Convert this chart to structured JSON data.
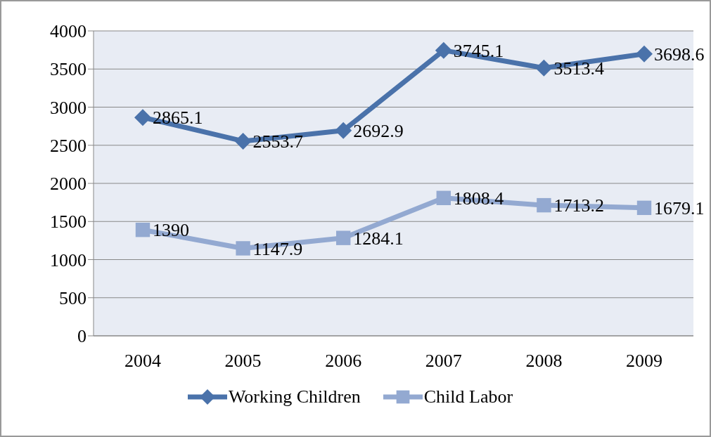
{
  "chart_data": {
    "type": "line",
    "categories": [
      "2004",
      "2005",
      "2006",
      "2007",
      "2008",
      "2009"
    ],
    "series": [
      {
        "name": "Working Children",
        "color": "#4a72aa",
        "marker": "diamond",
        "values": [
          2865.1,
          2553.7,
          2692.9,
          3745.1,
          3513.4,
          3698.6
        ]
      },
      {
        "name": "Child Labor",
        "color": "#93a9d1",
        "marker": "square",
        "values": [
          1390,
          1147.9,
          1284.1,
          1808.4,
          1713.2,
          1679.1
        ]
      }
    ],
    "ylim": [
      0,
      4000
    ],
    "yticks": [
      0,
      500,
      1000,
      1500,
      2000,
      2500,
      3000,
      3500,
      4000
    ],
    "grid": "y",
    "legend": "bottom",
    "data_labels": true
  }
}
